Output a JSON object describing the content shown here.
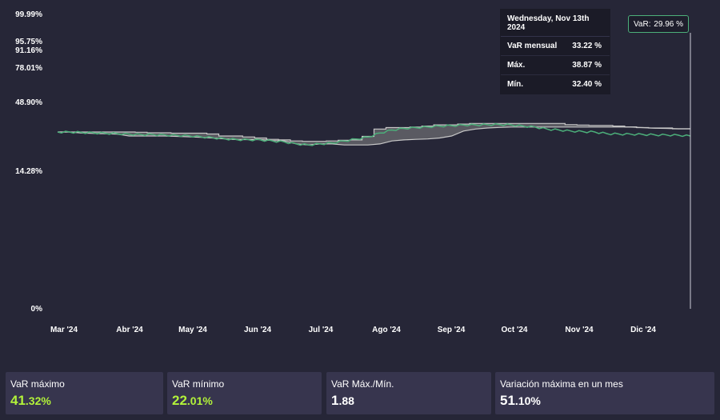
{
  "chart_data": {
    "type": "line",
    "title": "",
    "xlabel": "",
    "ylabel": "",
    "y_tick_labels": [
      "99.99%",
      "95.75%",
      "91.16%",
      "78.01%",
      "48.90%",
      "14.28%",
      "0%"
    ],
    "y_tick_values": [
      99.99,
      95.75,
      91.16,
      78.01,
      48.9,
      14.28,
      0
    ],
    "x_tick_labels": [
      "Mar '24",
      "Abr '24",
      "May '24",
      "Jun '24",
      "Jul '24",
      "Ago '24",
      "Sep '24",
      "Oct '24",
      "Nov '24",
      "Dic '24"
    ],
    "grid": false,
    "legend": "none",
    "series": [
      {
        "values": [
          34.0,
          34.0,
          33.8,
          33.6,
          33.4,
          33.2,
          32.9,
          32.7,
          32.7,
          32.5,
          32.3,
          32.1,
          31.6,
          31.1,
          30.6,
          30.2,
          30.1,
          30.0,
          29.5,
          29.0,
          28.0,
          27.5,
          28.0,
          28.5,
          29.5,
          30.5,
          31.5,
          33.5,
          35.0,
          35.8,
          36.2,
          36.6,
          37.0,
          37.2,
          37.5,
          37.6,
          37.7,
          37.8,
          37.6,
          37.0,
          36.5,
          35.5,
          35.0,
          34.5,
          34.2,
          34.0,
          33.2,
          33.0,
          32.9,
          32.8,
          32.6,
          32.5,
          32.4,
          32.0
        ]
      },
      {
        "values": [
          34.0,
          34.0,
          34.0,
          34.0,
          34.0,
          34.0,
          34.0,
          33.9,
          33.6,
          33.6,
          33.4,
          33.4,
          33.4,
          33.0,
          32.0,
          32.0,
          31.5,
          31.0,
          30.3,
          30.0,
          29.5,
          29.3,
          29.3,
          29.5,
          29.8,
          30.0,
          31.8,
          35.5,
          36.2,
          36.2,
          36.5,
          37.0,
          37.6,
          37.6,
          38.0,
          38.3,
          38.3,
          38.3,
          38.3,
          38.3,
          38.3,
          38.3,
          38.3,
          37.7,
          37.5,
          37.3,
          37.3,
          37.0,
          36.6,
          36.2,
          36.0,
          36.0,
          35.6,
          35.6
        ]
      },
      {
        "values": [
          34.0,
          34.0,
          33.5,
          33.3,
          33.1,
          32.9,
          32.0,
          32.0,
          32.0,
          32.0,
          31.8,
          31.6,
          31.3,
          31.0,
          30.5,
          30.2,
          30.2,
          30.2,
          29.7,
          29.5,
          28.0,
          27.5,
          28.0,
          28.0,
          27.5,
          27.5,
          27.5,
          28.0,
          29.5,
          30.0,
          30.3,
          30.5,
          31.0,
          32.0,
          34.5,
          35.5,
          36.0,
          36.3,
          36.5,
          36.5,
          36.5,
          36.5,
          36.5,
          36.5,
          36.5,
          36.5,
          36.5,
          36.5,
          36.5,
          36.2,
          35.9,
          35.8,
          35.6,
          35.6
        ]
      }
    ]
  },
  "tooltip": {
    "date": "Wednesday, Nov 13th 2024",
    "rows": [
      {
        "label": "VaR mensual",
        "value": "33.22 %"
      },
      {
        "label": "Máx.",
        "value": "38.87 %"
      },
      {
        "label": "Mín.",
        "value": "32.40 %"
      }
    ]
  },
  "crosshair": {
    "label": "VaR:",
    "value": "29.96 %"
  },
  "colors": {
    "line": "#4caf7a",
    "band_fill": "#5a5a62",
    "band_edge": "#c8c8c8",
    "accent": "#b2f23a"
  },
  "stats": [
    {
      "title": "VaR máximo",
      "int": "41",
      "dec": ".32%",
      "accent": true
    },
    {
      "title": "VaR mínimo",
      "int": "22",
      "dec": ".01%",
      "accent": true
    },
    {
      "title": "VaR Máx./Mín.",
      "int": "1",
      "dec": ".88",
      "accent": false
    },
    {
      "title": "Variación máxima en un mes",
      "int": "51",
      "dec": ".10%",
      "accent": false
    }
  ]
}
